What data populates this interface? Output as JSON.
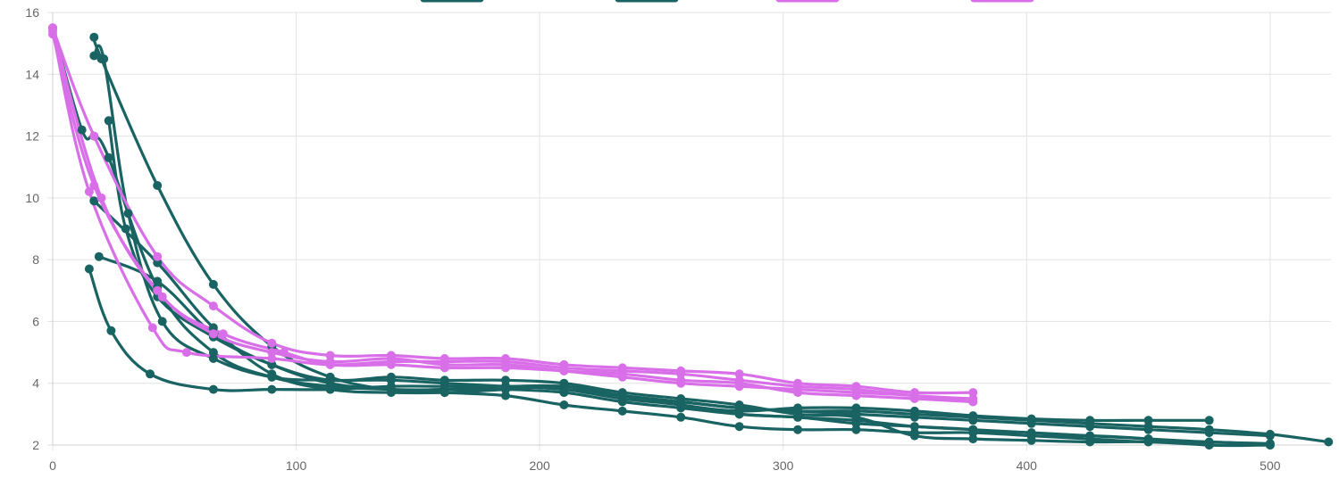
{
  "chart_data": {
    "type": "line",
    "title": "",
    "xlabel": "",
    "ylabel": "",
    "xlim": [
      0,
      525
    ],
    "ylim": [
      2,
      16
    ],
    "x_ticks": [
      "0",
      "100",
      "200",
      "300",
      "400",
      "500"
    ],
    "y_ticks": [
      "2",
      "4",
      "6",
      "8",
      "10",
      "12",
      "14",
      "16"
    ],
    "grid": true,
    "legend": "top",
    "colors": {
      "teal": "#1a6363",
      "violet": "#d96fe8",
      "grid": "#e3e3e3",
      "tick_text": "#666666"
    },
    "legend_entries": [
      {
        "color": "#1a6363",
        "label": ""
      },
      {
        "color": "#1a6363",
        "label": ""
      },
      {
        "color": "#d96fe8",
        "label": ""
      },
      {
        "color": "#d96fe8",
        "label": ""
      }
    ],
    "series": [
      {
        "color": "#1a6363",
        "points": [
          [
            0,
            15.5
          ],
          [
            12,
            12.2
          ],
          [
            17,
            12.0
          ],
          [
            23,
            11.3
          ],
          [
            43,
            7.1
          ],
          [
            66,
            5.0
          ],
          [
            90,
            4.2
          ],
          [
            114,
            3.9
          ],
          [
            139,
            3.8
          ],
          [
            161,
            3.8
          ],
          [
            186,
            3.9
          ],
          [
            210,
            3.8
          ],
          [
            234,
            3.6
          ],
          [
            258,
            3.4
          ],
          [
            282,
            3.2
          ],
          [
            306,
            3.1
          ],
          [
            330,
            3.1
          ],
          [
            354,
            3.0
          ],
          [
            378,
            2.9
          ],
          [
            402,
            2.8
          ],
          [
            426,
            2.7
          ],
          [
            450,
            2.6
          ],
          [
            475,
            2.5
          ],
          [
            500,
            2.35
          ],
          [
            524,
            2.1
          ]
        ]
      },
      {
        "color": "#1a6363",
        "points": [
          [
            17,
            15.2
          ],
          [
            20,
            14.5
          ],
          [
            43,
            10.4
          ],
          [
            66,
            7.2
          ],
          [
            90,
            5.2
          ],
          [
            114,
            4.2
          ],
          [
            139,
            3.8
          ],
          [
            161,
            3.8
          ],
          [
            186,
            3.8
          ],
          [
            210,
            3.7
          ],
          [
            234,
            3.4
          ],
          [
            258,
            3.2
          ],
          [
            282,
            3.0
          ],
          [
            306,
            2.9
          ],
          [
            330,
            2.8
          ],
          [
            354,
            2.6
          ],
          [
            378,
            2.5
          ],
          [
            402,
            2.4
          ],
          [
            426,
            2.3
          ],
          [
            450,
            2.2
          ],
          [
            475,
            2.1
          ],
          [
            500,
            2.05
          ]
        ]
      },
      {
        "color": "#1a6363",
        "points": [
          [
            17,
            14.6
          ],
          [
            21,
            14.5
          ],
          [
            31,
            9.5
          ],
          [
            45,
            6.0
          ],
          [
            66,
            4.8
          ],
          [
            90,
            4.2
          ],
          [
            114,
            4.1
          ],
          [
            139,
            4.1
          ],
          [
            161,
            4.0
          ],
          [
            186,
            3.9
          ],
          [
            210,
            3.8
          ],
          [
            234,
            3.5
          ],
          [
            258,
            3.3
          ],
          [
            282,
            3.0
          ],
          [
            306,
            2.9
          ],
          [
            330,
            2.7
          ],
          [
            354,
            2.6
          ],
          [
            378,
            2.5
          ],
          [
            402,
            2.3
          ],
          [
            426,
            2.3
          ],
          [
            450,
            2.2
          ],
          [
            475,
            2.0
          ],
          [
            500,
            2.0
          ]
        ]
      },
      {
        "color": "#1a6363",
        "points": [
          [
            15,
            7.7
          ],
          [
            24,
            5.7
          ],
          [
            40,
            4.3
          ],
          [
            66,
            3.8
          ],
          [
            90,
            3.8
          ],
          [
            114,
            3.8
          ],
          [
            139,
            3.9
          ],
          [
            161,
            3.9
          ],
          [
            186,
            3.9
          ],
          [
            210,
            3.9
          ],
          [
            234,
            3.6
          ],
          [
            258,
            3.4
          ],
          [
            282,
            3.2
          ],
          [
            306,
            3.1
          ],
          [
            330,
            3.0
          ],
          [
            354,
            2.9
          ],
          [
            378,
            2.8
          ],
          [
            402,
            2.7
          ],
          [
            426,
            2.6
          ],
          [
            450,
            2.5
          ],
          [
            475,
            2.4
          ],
          [
            500,
            2.3
          ]
        ]
      },
      {
        "color": "#1a6363",
        "points": [
          [
            19,
            8.1
          ],
          [
            43,
            7.3
          ],
          [
            66,
            5.6
          ],
          [
            90,
            4.6
          ],
          [
            114,
            4.0
          ],
          [
            139,
            3.8
          ],
          [
            161,
            3.7
          ],
          [
            186,
            3.6
          ],
          [
            210,
            3.3
          ],
          [
            234,
            3.1
          ],
          [
            258,
            2.9
          ],
          [
            282,
            2.6
          ],
          [
            306,
            2.5
          ],
          [
            330,
            2.5
          ],
          [
            354,
            2.4
          ],
          [
            378,
            2.4
          ],
          [
            402,
            2.3
          ],
          [
            426,
            2.2
          ],
          [
            450,
            2.1
          ],
          [
            475,
            2.1
          ],
          [
            500,
            2.0
          ]
        ]
      },
      {
        "color": "#1a6363",
        "points": [
          [
            17,
            9.9
          ],
          [
            43,
            7.9
          ],
          [
            66,
            5.8
          ],
          [
            90,
            4.3
          ],
          [
            114,
            3.8
          ],
          [
            139,
            3.7
          ],
          [
            161,
            3.7
          ],
          [
            186,
            3.8
          ],
          [
            210,
            3.9
          ],
          [
            234,
            3.6
          ],
          [
            258,
            3.3
          ],
          [
            282,
            3.1
          ],
          [
            306,
            3.2
          ],
          [
            330,
            3.2
          ],
          [
            354,
            3.1
          ],
          [
            378,
            2.95
          ],
          [
            402,
            2.85
          ],
          [
            426,
            2.8
          ],
          [
            450,
            2.8
          ],
          [
            475,
            2.8
          ]
        ]
      },
      {
        "color": "#1a6363",
        "points": [
          [
            23,
            12.5
          ],
          [
            30,
            9.0
          ],
          [
            43,
            6.8
          ],
          [
            66,
            5.5
          ],
          [
            90,
            4.6
          ],
          [
            114,
            4.1
          ],
          [
            139,
            4.2
          ],
          [
            161,
            4.1
          ],
          [
            186,
            4.1
          ],
          [
            210,
            4.0
          ],
          [
            234,
            3.7
          ],
          [
            258,
            3.5
          ],
          [
            282,
            3.3
          ],
          [
            306,
            3.0
          ],
          [
            330,
            2.9
          ],
          [
            354,
            2.3
          ],
          [
            378,
            2.2
          ],
          [
            402,
            2.15
          ],
          [
            426,
            2.1
          ],
          [
            450,
            2.1
          ],
          [
            475,
            2.0
          ]
        ]
      },
      {
        "color": "#d96fe8",
        "points": [
          [
            0,
            15.5
          ],
          [
            17,
            12.0
          ],
          [
            43,
            8.1
          ],
          [
            66,
            6.5
          ],
          [
            90,
            5.3
          ],
          [
            114,
            4.9
          ],
          [
            139,
            4.9
          ],
          [
            161,
            4.8
          ],
          [
            186,
            4.8
          ],
          [
            210,
            4.6
          ],
          [
            234,
            4.5
          ],
          [
            258,
            4.4
          ],
          [
            282,
            4.3
          ],
          [
            306,
            4.0
          ],
          [
            330,
            3.9
          ],
          [
            354,
            3.7
          ],
          [
            378,
            3.7
          ]
        ]
      },
      {
        "color": "#d96fe8",
        "points": [
          [
            0,
            15.4
          ],
          [
            15,
            10.2
          ],
          [
            41,
            5.8
          ],
          [
            55,
            5.0
          ],
          [
            90,
            4.8
          ],
          [
            114,
            4.6
          ],
          [
            139,
            4.7
          ],
          [
            161,
            4.7
          ],
          [
            186,
            4.7
          ],
          [
            210,
            4.5
          ],
          [
            234,
            4.4
          ],
          [
            258,
            4.3
          ],
          [
            282,
            4.1
          ],
          [
            306,
            3.9
          ],
          [
            330,
            3.8
          ],
          [
            354,
            3.6
          ],
          [
            378,
            3.5
          ]
        ]
      },
      {
        "color": "#d96fe8",
        "points": [
          [
            0,
            15.3
          ],
          [
            17,
            10.4
          ],
          [
            43,
            7.0
          ],
          [
            66,
            5.6
          ],
          [
            90,
            5.0
          ],
          [
            114,
            4.7
          ],
          [
            139,
            4.8
          ],
          [
            161,
            4.6
          ],
          [
            186,
            4.6
          ],
          [
            210,
            4.4
          ],
          [
            234,
            4.2
          ],
          [
            258,
            4.0
          ],
          [
            282,
            3.9
          ],
          [
            306,
            3.8
          ],
          [
            330,
            3.7
          ],
          [
            354,
            3.6
          ],
          [
            378,
            3.4
          ]
        ]
      },
      {
        "color": "#d96fe8",
        "points": [
          [
            0,
            15.5
          ],
          [
            20,
            10.0
          ],
          [
            45,
            6.8
          ],
          [
            70,
            5.6
          ],
          [
            95,
            5.0
          ],
          [
            114,
            4.6
          ],
          [
            139,
            4.6
          ],
          [
            161,
            4.5
          ],
          [
            186,
            4.5
          ],
          [
            210,
            4.4
          ],
          [
            234,
            4.3
          ],
          [
            258,
            4.1
          ],
          [
            282,
            4.0
          ],
          [
            306,
            3.7
          ],
          [
            330,
            3.6
          ],
          [
            354,
            3.5
          ],
          [
            378,
            3.4
          ]
        ]
      }
    ]
  }
}
